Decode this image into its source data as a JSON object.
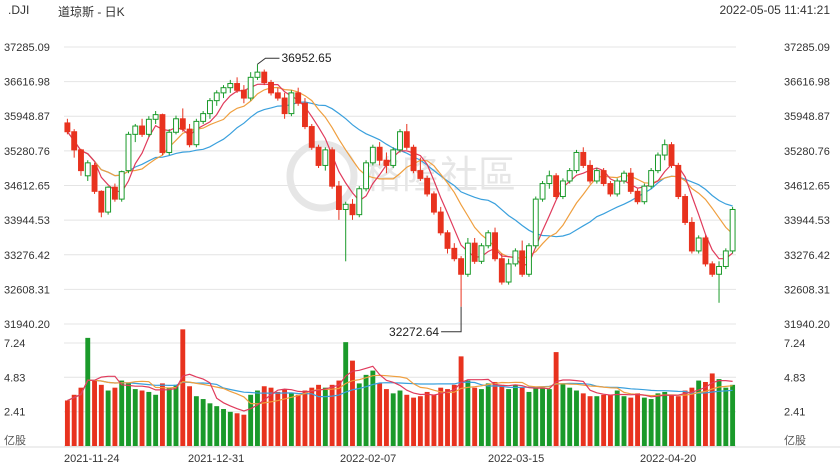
{
  "header": {
    "symbol": ".DJI",
    "name": "道琼斯 - 日K",
    "datetime": "2022-05-05 11:41:21"
  },
  "colors": {
    "up": "#1a9a2a",
    "down": "#e8321e",
    "ma5": "#e03b5c",
    "ma10": "#ef9f3f",
    "ma20": "#3aa0dd",
    "grid": "#e4e4e4",
    "axis_text": "#333333"
  },
  "watermark": "格隆社區",
  "chart_data": [
    {
      "type": "candlestick",
      "title": "道琼斯 - 日K",
      "y_ticks": [
        "37285.09",
        "36616.98",
        "35948.87",
        "35280.76",
        "34612.65",
        "33944.53",
        "33276.42",
        "32608.31",
        "31940.20"
      ],
      "ylim": [
        31940.2,
        37285.09
      ],
      "x_ticks": [
        "2021-11-24",
        "2021-12-31",
        "2022-02-07",
        "2022-03-15",
        "2022-04-20"
      ],
      "annotations": [
        {
          "label": "36952.65",
          "value": 36952.65,
          "kind": "high"
        },
        {
          "label": "32272.64",
          "value": 32272.64,
          "kind": "low"
        }
      ],
      "moving_averages": [
        "MA5",
        "MA10",
        "MA20"
      ],
      "ohlc": [
        [
          35820,
          35900,
          35600,
          35650
        ],
        [
          35650,
          35700,
          35150,
          35300
        ],
        [
          35300,
          35320,
          34800,
          34900
        ],
        [
          34800,
          35100,
          34700,
          35050
        ],
        [
          35000,
          35050,
          34450,
          34500
        ],
        [
          34500,
          34520,
          34000,
          34100
        ],
        [
          34100,
          34600,
          34050,
          34580
        ],
        [
          34580,
          34650,
          34300,
          34350
        ],
        [
          34350,
          34900,
          34300,
          34880
        ],
        [
          34900,
          35650,
          34850,
          35600
        ],
        [
          35600,
          35800,
          35450,
          35760
        ],
        [
          35760,
          35900,
          35550,
          35600
        ],
        [
          35600,
          35950,
          35550,
          35890
        ],
        [
          35890,
          36050,
          35800,
          35980
        ],
        [
          35980,
          36000,
          35200,
          35250
        ],
        [
          35250,
          35700,
          35200,
          35640
        ],
        [
          35640,
          35960,
          35600,
          35900
        ],
        [
          35900,
          36100,
          35650,
          35700
        ],
        [
          35700,
          35800,
          35350,
          35400
        ],
        [
          35400,
          35900,
          35350,
          35850
        ],
        [
          35850,
          36050,
          35800,
          36000
        ],
        [
          36000,
          36300,
          35900,
          36250
        ],
        [
          36250,
          36450,
          36150,
          36400
        ],
        [
          36400,
          36550,
          36300,
          36500
        ],
        [
          36500,
          36650,
          36400,
          36580
        ],
        [
          36580,
          36700,
          36400,
          36450
        ],
        [
          36450,
          36550,
          36200,
          36300
        ],
        [
          36300,
          36800,
          36250,
          36700
        ],
        [
          36700,
          36952.65,
          36650,
          36800
        ],
        [
          36800,
          36850,
          36550,
          36600
        ],
        [
          36600,
          36650,
          36350,
          36400
        ],
        [
          36400,
          36500,
          36250,
          36300
        ],
        [
          36300,
          36400,
          35900,
          36000
        ],
        [
          36000,
          36450,
          35950,
          36400
        ],
        [
          36400,
          36500,
          36150,
          36200
        ],
        [
          36200,
          36300,
          35700,
          35750
        ],
        [
          35750,
          35800,
          35300,
          35350
        ],
        [
          35350,
          35400,
          34950,
          35000
        ],
        [
          35000,
          35350,
          34900,
          35300
        ],
        [
          35300,
          35350,
          34550,
          34600
        ],
        [
          34600,
          34700,
          33950,
          34150
        ],
        [
          34150,
          34300,
          33150,
          34250
        ],
        [
          34250,
          34350,
          33950,
          34050
        ],
        [
          34050,
          34600,
          34000,
          34550
        ],
        [
          34550,
          35100,
          34500,
          35050
        ],
        [
          35050,
          35400,
          35000,
          35350
        ],
        [
          35350,
          35450,
          35000,
          35100
        ],
        [
          35100,
          35250,
          34850,
          35000
        ],
        [
          35000,
          35350,
          34950,
          35300
        ],
        [
          35300,
          35700,
          35250,
          35650
        ],
        [
          35650,
          35800,
          35300,
          35350
        ],
        [
          35350,
          35400,
          34850,
          34900
        ],
        [
          34900,
          35150,
          34700,
          34750
        ],
        [
          34750,
          34800,
          34400,
          34450
        ],
        [
          34450,
          34500,
          34050,
          34100
        ],
        [
          34100,
          34200,
          33650,
          33700
        ],
        [
          33700,
          33750,
          33300,
          33400
        ],
        [
          33400,
          33500,
          33150,
          33200
        ],
        [
          33200,
          33250,
          32272.64,
          32900
        ],
        [
          32900,
          33600,
          32850,
          33500
        ],
        [
          33500,
          33600,
          33100,
          33150
        ],
        [
          33150,
          33500,
          33100,
          33450
        ],
        [
          33450,
          33750,
          33400,
          33700
        ],
        [
          33700,
          33800,
          33150,
          33200
        ],
        [
          33200,
          33300,
          32700,
          32750
        ],
        [
          32750,
          33200,
          32700,
          33100
        ],
        [
          33100,
          33400,
          33050,
          33350
        ],
        [
          33350,
          33550,
          32850,
          32900
        ],
        [
          32900,
          33500,
          32850,
          33450
        ],
        [
          33450,
          34400,
          33400,
          34350
        ],
        [
          34350,
          34700,
          34300,
          34650
        ],
        [
          34650,
          34900,
          34550,
          34800
        ],
        [
          34800,
          34850,
          34350,
          34400
        ],
        [
          34400,
          34750,
          34350,
          34700
        ],
        [
          34700,
          34950,
          34650,
          34900
        ],
        [
          34900,
          35300,
          34850,
          35250
        ],
        [
          35250,
          35350,
          34950,
          35000
        ],
        [
          35000,
          35100,
          34650,
          34700
        ],
        [
          34700,
          34950,
          34650,
          34900
        ],
        [
          34900,
          34950,
          34600,
          34650
        ],
        [
          34650,
          34700,
          34400,
          34450
        ],
        [
          34450,
          34750,
          34400,
          34700
        ],
        [
          34700,
          34900,
          34650,
          34850
        ],
        [
          34850,
          34950,
          34450,
          34500
        ],
        [
          34500,
          34550,
          34250,
          34300
        ],
        [
          34300,
          34650,
          34250,
          34600
        ],
        [
          34600,
          34950,
          34550,
          34900
        ],
        [
          34900,
          35250,
          34850,
          35200
        ],
        [
          35200,
          35500,
          35100,
          35400
        ],
        [
          35400,
          35450,
          34950,
          35000
        ],
        [
          35000,
          35050,
          34350,
          34400
        ],
        [
          34400,
          34450,
          33850,
          33900
        ],
        [
          33900,
          34000,
          33300,
          33350
        ],
        [
          33350,
          33650,
          33300,
          33600
        ],
        [
          33600,
          33650,
          33050,
          33100
        ],
        [
          33100,
          33150,
          32850,
          32900
        ],
        [
          32900,
          33150,
          32350,
          33050
        ],
        [
          33050,
          33400,
          33000,
          33350
        ],
        [
          33350,
          34200,
          33300,
          34150
        ]
      ],
      "volume": {
        "unit": "亿股",
        "y_ticks": [
          "7.24",
          "4.83",
          "2.41"
        ],
        "ylim": [
          0,
          7.24
        ],
        "values": [
          3.2,
          3.6,
          4.1,
          7.6,
          4.6,
          4.3,
          3.9,
          4.1,
          4.6,
          4.4,
          4.0,
          3.9,
          3.8,
          3.6,
          4.4,
          4.1,
          4.3,
          8.2,
          4.2,
          3.5,
          3.3,
          3.0,
          2.8,
          2.6,
          2.4,
          2.3,
          2.2,
          3.6,
          3.9,
          4.2,
          4.1,
          3.8,
          4.0,
          3.7,
          3.6,
          3.9,
          4.1,
          4.3,
          4.1,
          4.3,
          4.6,
          7.3,
          6.0,
          4.4,
          5.0,
          5.3,
          4.4,
          4.0,
          3.7,
          3.9,
          3.6,
          3.4,
          3.5,
          3.8,
          3.6,
          4.1,
          4.0,
          4.3,
          6.3,
          4.6,
          4.1,
          4.0,
          4.4,
          4.5,
          4.3,
          4.0,
          4.3,
          4.1,
          3.8,
          4.1,
          4.1,
          4.0,
          6.6,
          4.4,
          4.1,
          3.9,
          3.7,
          3.5,
          3.5,
          3.6,
          3.6,
          3.9,
          3.5,
          3.4,
          3.7,
          3.4,
          3.3,
          3.7,
          3.8,
          3.6,
          3.5,
          3.9,
          4.1,
          4.6,
          4.5,
          5.1,
          4.7,
          4.1,
          4.3
        ]
      }
    }
  ]
}
